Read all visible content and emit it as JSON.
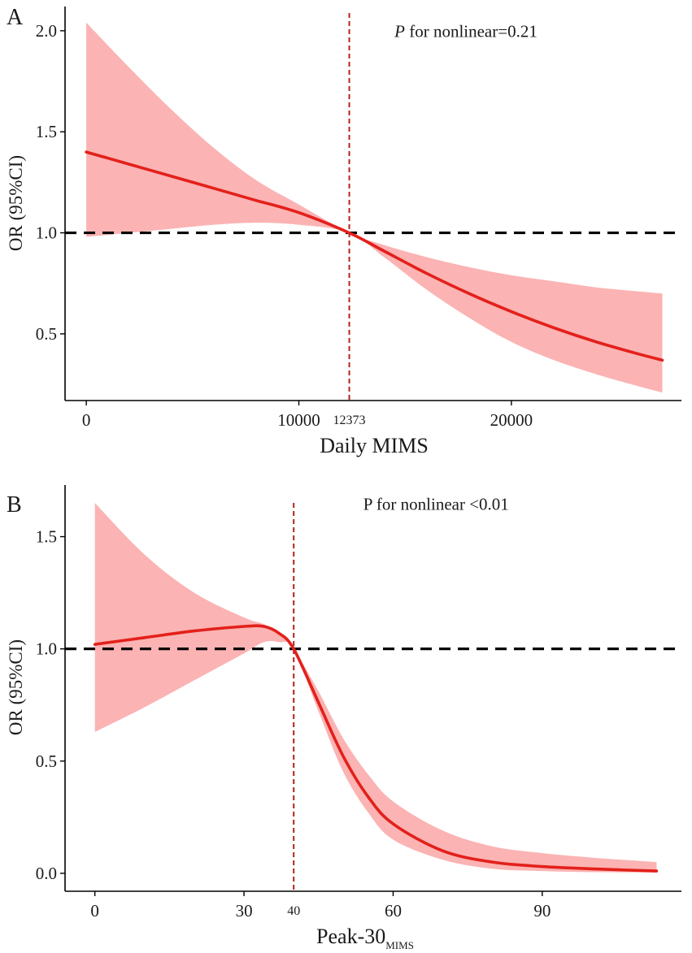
{
  "colors": {
    "line": "#e3201b",
    "band": "#fbb3b3",
    "reference": "#000000",
    "vline": "#b22222",
    "axis": "#000000"
  },
  "chart_data": [
    {
      "panel_label": "A",
      "type": "line",
      "xlabel": "Daily MIMS",
      "xlabel_sub": "",
      "ylabel": "OR (95%CI)",
      "xlim": [
        -1000,
        28000
      ],
      "ylim": [
        0.17,
        2.12
      ],
      "x_ticks": [
        0,
        10000,
        20000
      ],
      "x_tick_labels": [
        "0",
        "10000",
        "20000"
      ],
      "y_ticks": [
        0.5,
        1.0,
        1.5,
        2.0
      ],
      "y_tick_labels": [
        "0.5",
        "1.0",
        "1.5",
        "2.0"
      ],
      "reference_y": 1.0,
      "cutoff_x": 12373,
      "cutoff_label": "12373",
      "annotation_italic": "P",
      "annotation_rest": " for nonlinear=0.21",
      "annotation_pos": [
        14500,
        1.97
      ],
      "series": [
        {
          "name": "OR",
          "x": [
            0,
            2000,
            4000,
            6000,
            8000,
            10000,
            12373,
            14000,
            16000,
            18000,
            20000,
            22000,
            24000,
            26000,
            27100
          ],
          "y": [
            1.4,
            1.34,
            1.28,
            1.22,
            1.16,
            1.1,
            1.0,
            0.91,
            0.8,
            0.7,
            0.61,
            0.53,
            0.46,
            0.4,
            0.37
          ]
        },
        {
          "name": "95% CI lower",
          "x": [
            0,
            2000,
            4000,
            6000,
            8000,
            10000,
            12373,
            14000,
            16000,
            18000,
            20000,
            22000,
            24000,
            26000,
            27100
          ],
          "y": [
            0.98,
            1.0,
            1.02,
            1.04,
            1.05,
            1.04,
            1.0,
            0.88,
            0.72,
            0.58,
            0.46,
            0.37,
            0.3,
            0.24,
            0.21
          ]
        },
        {
          "name": "95% CI upper",
          "x": [
            0,
            2000,
            4000,
            6000,
            8000,
            10000,
            12373,
            14000,
            16000,
            18000,
            20000,
            22000,
            24000,
            26000,
            27100
          ],
          "y": [
            2.04,
            1.82,
            1.61,
            1.42,
            1.26,
            1.14,
            1.0,
            0.94,
            0.88,
            0.83,
            0.79,
            0.76,
            0.73,
            0.71,
            0.7
          ]
        }
      ]
    },
    {
      "panel_label": "B",
      "type": "line",
      "xlabel": "Peak-30",
      "xlabel_sub": "MIMS",
      "ylabel": "OR (95%CI)",
      "xlim": [
        -6,
        118
      ],
      "ylim": [
        -0.08,
        1.73
      ],
      "x_ticks": [
        0,
        30,
        60,
        90
      ],
      "x_tick_labels": [
        "0",
        "30",
        "60",
        "90"
      ],
      "y_ticks": [
        0.0,
        0.5,
        1.0,
        1.5
      ],
      "y_tick_labels": [
        "0.0",
        "0.5",
        "1.0",
        "1.5"
      ],
      "reference_y": 1.0,
      "cutoff_x": 40,
      "cutoff_label": "40",
      "annotation_italic": "",
      "annotation_rest": "P for nonlinear <0.01",
      "annotation_pos": [
        54,
        1.62
      ],
      "series": [
        {
          "name": "OR",
          "x": [
            0,
            10,
            20,
            30,
            34,
            37,
            40,
            45,
            50,
            55,
            60,
            70,
            80,
            90,
            100,
            113
          ],
          "y": [
            1.02,
            1.05,
            1.08,
            1.1,
            1.1,
            1.07,
            1.0,
            0.76,
            0.52,
            0.34,
            0.22,
            0.1,
            0.05,
            0.03,
            0.02,
            0.01
          ]
        },
        {
          "name": "95% CI lower",
          "x": [
            0,
            10,
            20,
            30,
            34,
            37,
            40,
            45,
            50,
            55,
            60,
            70,
            80,
            90,
            100,
            113
          ],
          "y": [
            0.63,
            0.74,
            0.86,
            0.98,
            1.03,
            1.03,
            1.0,
            0.72,
            0.45,
            0.27,
            0.15,
            0.06,
            0.02,
            0.01,
            0.005,
            0.003
          ]
        },
        {
          "name": "95% CI upper",
          "x": [
            0,
            10,
            20,
            30,
            34,
            37,
            40,
            45,
            50,
            55,
            60,
            70,
            80,
            90,
            100,
            113
          ],
          "y": [
            1.65,
            1.42,
            1.25,
            1.14,
            1.11,
            1.07,
            1.0,
            0.81,
            0.6,
            0.44,
            0.32,
            0.19,
            0.12,
            0.09,
            0.07,
            0.05
          ]
        }
      ]
    }
  ]
}
